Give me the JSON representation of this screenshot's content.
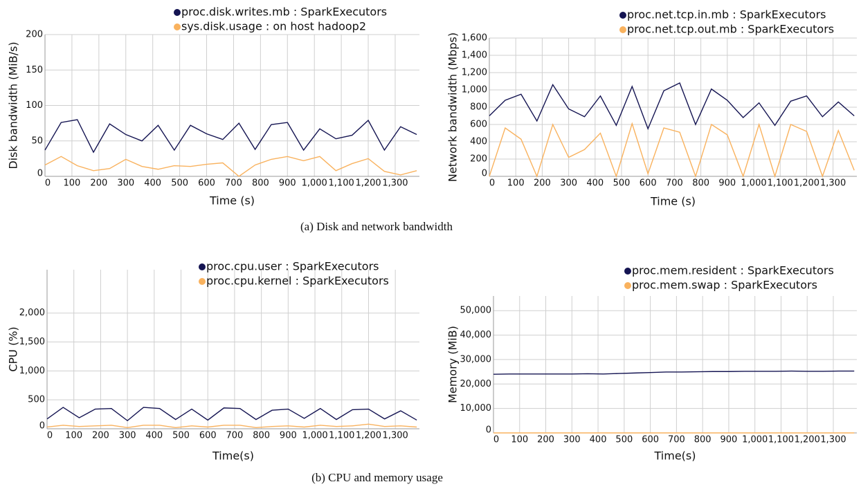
{
  "captions": [
    "(a) Disk and network bandwidth",
    "(b) CPU and memory usage"
  ],
  "chart_data": [
    {
      "type": "line",
      "xlabel": "Time (s)",
      "ylabel": "Disk bandwidth (MiB/s)",
      "x": [
        0,
        60,
        120,
        180,
        240,
        300,
        360,
        420,
        480,
        540,
        600,
        660,
        720,
        780,
        840,
        900,
        960,
        1020,
        1080,
        1140,
        1200,
        1260,
        1320,
        1380
      ],
      "series": [
        {
          "name": "proc.disk.writes.mb : SparkExecutors",
          "color": "#141452",
          "values": [
            37,
            76,
            80,
            34,
            74,
            59,
            50,
            72,
            37,
            72,
            60,
            52,
            75,
            38,
            73,
            76,
            37,
            67,
            53,
            58,
            79,
            37,
            70,
            59
          ]
        },
        {
          "name": "sys.disk.usage : on host hadoop2",
          "color": "#f9b25e",
          "values": [
            16,
            28,
            15,
            8,
            11,
            24,
            14,
            10,
            15,
            14,
            17,
            19,
            0,
            16,
            24,
            28,
            22,
            28,
            8,
            18,
            25,
            7,
            2,
            8
          ]
        }
      ],
      "xlim": [
        0,
        1390
      ],
      "ylim": [
        0,
        200
      ],
      "xticks": [
        0,
        100,
        200,
        300,
        400,
        500,
        600,
        700,
        800,
        900,
        {
          "value": 1000,
          "label": "1,000"
        },
        {
          "value": 1100,
          "label": "1,100"
        },
        {
          "value": 1200,
          "label": "1,200"
        },
        {
          "value": 1300,
          "label": "1,300"
        }
      ],
      "yticks": [
        0,
        50,
        100,
        150,
        200
      ],
      "grid": true,
      "legend": "top"
    },
    {
      "type": "line",
      "xlabel": "Time (s)",
      "ylabel": "Network bandwidth (Mbps)",
      "x": [
        0,
        60,
        120,
        180,
        240,
        300,
        360,
        420,
        480,
        540,
        600,
        660,
        720,
        780,
        840,
        900,
        960,
        1020,
        1080,
        1140,
        1200,
        1260,
        1320,
        1380
      ],
      "series": [
        {
          "name": "proc.net.tcp.in.mb : SparkExecutors",
          "color": "#141452",
          "values": [
            700,
            880,
            950,
            640,
            1060,
            780,
            690,
            930,
            590,
            1040,
            550,
            990,
            1080,
            600,
            1010,
            880,
            680,
            850,
            590,
            870,
            930,
            690,
            860,
            700
          ]
        },
        {
          "name": "proc.net.tcp.out.mb : SparkExecutors",
          "color": "#f9b25e",
          "values": [
            0,
            560,
            430,
            0,
            600,
            220,
            310,
            500,
            0,
            610,
            30,
            560,
            510,
            0,
            600,
            480,
            0,
            600,
            0,
            600,
            520,
            0,
            530,
            70
          ]
        }
      ],
      "xlim": [
        0,
        1390
      ],
      "ylim": [
        0,
        1600
      ],
      "xticks": [
        0,
        100,
        200,
        300,
        400,
        500,
        600,
        700,
        800,
        900,
        {
          "value": 1000,
          "label": "1,000"
        },
        {
          "value": 1100,
          "label": "1,100"
        },
        {
          "value": 1200,
          "label": "1,200"
        },
        {
          "value": 1300,
          "label": "1,300"
        }
      ],
      "yticks": [
        0,
        200,
        400,
        600,
        800,
        {
          "value": 1000,
          "label": "1,000"
        },
        {
          "value": 1200,
          "label": "1,200"
        },
        {
          "value": 1400,
          "label": "1,400"
        },
        {
          "value": 1600,
          "label": "1,600"
        }
      ],
      "grid": true,
      "legend": "top"
    },
    {
      "type": "line",
      "xlabel": "Time(s)",
      "ylabel": "CPU (%)",
      "x": [
        0,
        60,
        120,
        180,
        240,
        300,
        360,
        420,
        480,
        540,
        600,
        660,
        720,
        780,
        840,
        900,
        960,
        1020,
        1080,
        1140,
        1200,
        1260,
        1320,
        1380
      ],
      "series": [
        {
          "name": "proc.cpu.user : SparkExecutors",
          "color": "#141452",
          "values": [
            170,
            370,
            190,
            340,
            350,
            140,
            370,
            350,
            160,
            340,
            150,
            360,
            350,
            160,
            320,
            340,
            180,
            350,
            160,
            330,
            340,
            170,
            310,
            150
          ]
        },
        {
          "name": "proc.cpu.kernel : SparkExecutors",
          "color": "#f9b25e",
          "values": [
            30,
            60,
            40,
            50,
            60,
            20,
            60,
            60,
            20,
            50,
            30,
            60,
            60,
            20,
            40,
            50,
            30,
            60,
            40,
            50,
            80,
            40,
            50,
            30
          ]
        }
      ],
      "xlim": [
        0,
        1390
      ],
      "ylim": [
        0,
        2750
      ],
      "xticks": [
        0,
        100,
        200,
        300,
        400,
        500,
        600,
        700,
        800,
        900,
        {
          "value": 1000,
          "label": "1,000"
        },
        {
          "value": 1100,
          "label": "1,100"
        },
        {
          "value": 1200,
          "label": "1,200"
        },
        {
          "value": 1300,
          "label": "1,300"
        }
      ],
      "yticks": [
        0,
        500,
        {
          "value": 1000,
          "label": "1,000"
        },
        {
          "value": 1500,
          "label": "1,500"
        },
        {
          "value": 2000,
          "label": "2,000"
        }
      ],
      "grid": true,
      "legend": "top"
    },
    {
      "type": "line",
      "xlabel": "Time(s)",
      "ylabel": "Memory (MiB)",
      "x": [
        0,
        60,
        120,
        180,
        240,
        300,
        360,
        420,
        480,
        540,
        600,
        660,
        720,
        780,
        840,
        900,
        960,
        1020,
        1080,
        1140,
        1200,
        1260,
        1320,
        1380
      ],
      "series": [
        {
          "name": "proc.mem.resident : SparkExecutors",
          "color": "#141452",
          "values": [
            24000,
            24100,
            24100,
            24100,
            24100,
            24100,
            24200,
            24100,
            24300,
            24500,
            24700,
            24900,
            24900,
            25000,
            25100,
            25100,
            25200,
            25200,
            25200,
            25300,
            25200,
            25200,
            25300,
            25300
          ]
        },
        {
          "name": "proc.mem.swap : SparkExecutors",
          "color": "#f9b25e",
          "values": [
            0,
            0,
            0,
            0,
            0,
            0,
            0,
            0,
            0,
            0,
            0,
            0,
            0,
            0,
            0,
            0,
            0,
            0,
            0,
            0,
            0,
            0,
            0,
            0
          ]
        }
      ],
      "xlim": [
        0,
        1390
      ],
      "ylim": [
        0,
        56000
      ],
      "xticks": [
        0,
        100,
        200,
        300,
        400,
        500,
        600,
        700,
        800,
        900,
        {
          "value": 1000,
          "label": "1,000"
        },
        {
          "value": 1100,
          "label": "1,100"
        },
        {
          "value": 1200,
          "label": "1,200"
        },
        {
          "value": 1300,
          "label": "1,300"
        }
      ],
      "yticks": [
        0,
        {
          "value": 10000,
          "label": "10,000"
        },
        {
          "value": 20000,
          "label": "20,000"
        },
        {
          "value": 30000,
          "label": "30,000"
        },
        {
          "value": 40000,
          "label": "40,000"
        },
        {
          "value": 50000,
          "label": "50,000"
        }
      ],
      "grid": true,
      "legend": "top"
    }
  ]
}
